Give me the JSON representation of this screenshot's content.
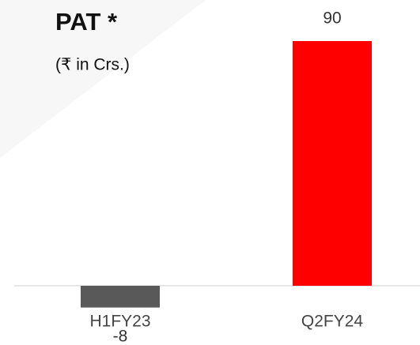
{
  "chart_data": {
    "type": "bar",
    "title": "PAT *",
    "subtitle": "(₹ in Crs.)",
    "categories": [
      "H1FY23",
      "Q2FY24"
    ],
    "values": [
      -8,
      90
    ],
    "colors": [
      "#595959",
      "#ff0000"
    ]
  }
}
